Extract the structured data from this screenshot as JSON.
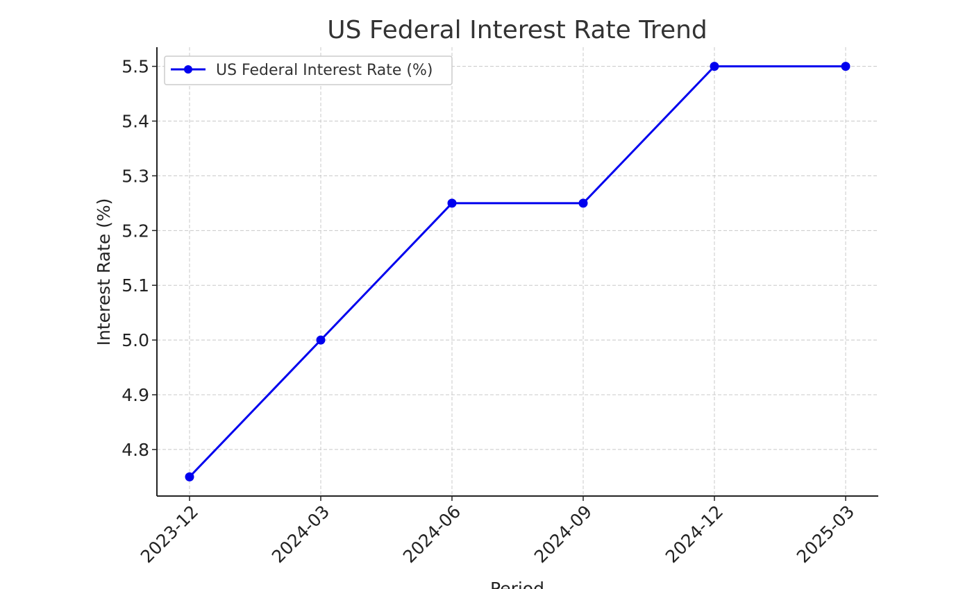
{
  "chart_data": {
    "type": "line",
    "title": "US Federal Interest Rate Trend",
    "xlabel": "Period",
    "ylabel": "Interest Rate (%)",
    "categories": [
      "2023-12",
      "2024-03",
      "2024-06",
      "2024-09",
      "2024-12",
      "2025-03"
    ],
    "series": [
      {
        "name": "US Federal Interest Rate (%)",
        "values": [
          4.75,
          5.0,
          5.25,
          5.25,
          5.5,
          5.5
        ],
        "color": "#0000ee"
      }
    ],
    "ylim": [
      4.715,
      5.535
    ],
    "yticks": [
      "4.8",
      "4.9",
      "5.0",
      "5.1",
      "5.2",
      "5.3",
      "5.4",
      "5.5"
    ],
    "grid": true,
    "legend_position": "top-left"
  }
}
